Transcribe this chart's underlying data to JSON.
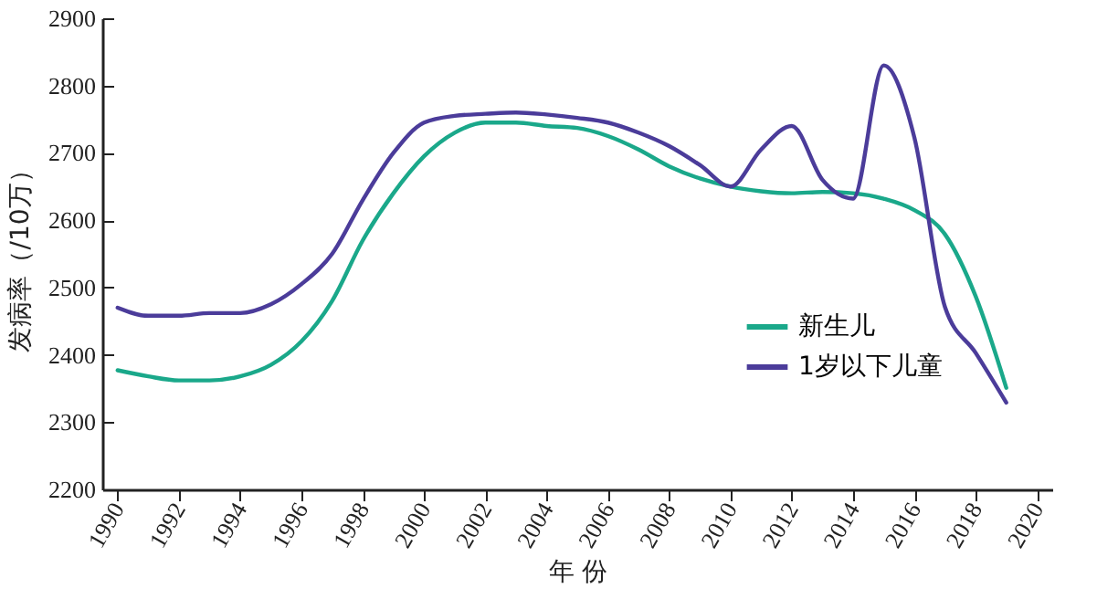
{
  "chart_data": {
    "type": "line",
    "xlabel": "年 份",
    "ylabel": "发病率（/10万）",
    "x": [
      1990,
      1991,
      1992,
      1993,
      1994,
      1995,
      1996,
      1997,
      1998,
      1999,
      2000,
      2001,
      2002,
      2003,
      2004,
      2005,
      2006,
      2007,
      2008,
      2009,
      2010,
      2011,
      2012,
      2013,
      2014,
      2015,
      2016,
      2017,
      2018,
      2019
    ],
    "series": [
      {
        "name": "新生儿",
        "color": "#1aa88a",
        "values": [
          2377,
          2368,
          2362,
          2362,
          2368,
          2385,
          2420,
          2480,
          2570,
          2640,
          2695,
          2730,
          2745,
          2745,
          2740,
          2737,
          2725,
          2705,
          2680,
          2662,
          2650,
          2643,
          2640,
          2642,
          2640,
          2632,
          2615,
          2579,
          2487,
          2351
        ]
      },
      {
        "name": "1岁以下儿童",
        "color": "#4b3c9a",
        "values": [
          2470,
          2458,
          2458,
          2462,
          2462,
          2475,
          2505,
          2550,
          2630,
          2700,
          2745,
          2755,
          2758,
          2760,
          2757,
          2752,
          2745,
          2730,
          2710,
          2682,
          2650,
          2705,
          2740,
          2660,
          2632,
          2830,
          2723,
          2471,
          2403,
          2329
        ]
      }
    ],
    "xlim": [
      1989.5,
      2020.5
    ],
    "xticks": [
      1990,
      1992,
      1994,
      1996,
      1998,
      2000,
      2002,
      2004,
      2006,
      2008,
      2010,
      2012,
      2014,
      2016,
      2018,
      2020
    ],
    "ylim": [
      2200,
      2900
    ],
    "yticks": [
      2200,
      2300,
      2400,
      2500,
      2600,
      2700,
      2800,
      2900
    ],
    "grid": false,
    "legend": "bottom right"
  }
}
